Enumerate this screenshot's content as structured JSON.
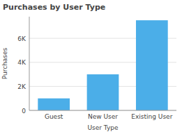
{
  "chart_data": {
    "type": "bar",
    "title": "Purchases by User Type",
    "xlabel": "User Type",
    "ylabel": "Purchases",
    "categories": [
      "Guest",
      "New User",
      "Existing User"
    ],
    "values": [
      1000,
      3000,
      7500
    ],
    "color": "#4BAEE8",
    "ylim": [
      0,
      7800
    ],
    "yticks": [
      0,
      {
        "value": 2000,
        "label": "2K"
      },
      {
        "value": 4000,
        "label": "4K"
      },
      {
        "value": 6000,
        "label": "6K"
      }
    ],
    "grid": true
  }
}
